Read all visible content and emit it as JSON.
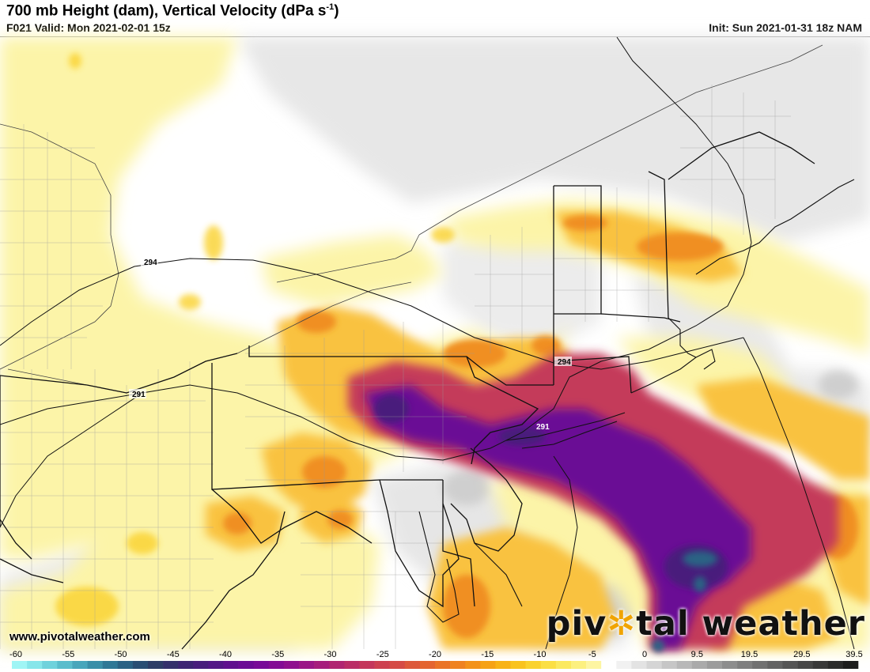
{
  "header": {
    "title_main": "700 mb Height (dam), Vertical Velocity (dPa s",
    "title_sup": "-1",
    "title_end": ")",
    "valid": "F021 Valid: Mon 2021-02-01 15z",
    "init": "Init: Sun 2021-01-31 18z NAM"
  },
  "map": {
    "contour_labels": [
      "294",
      "291",
      "294",
      "291"
    ]
  },
  "footer": {
    "website": "www.pivotalweather.com",
    "logo_pre": "piv",
    "logo_gear": "✲",
    "logo_post": "tal weather"
  },
  "colorbar": {
    "labels": [
      "-60",
      "-55",
      "-50",
      "-45",
      "-40",
      "-35",
      "-30",
      "-25",
      "-20",
      "-15",
      "-10",
      "-5",
      "0",
      "9.5",
      "19.5",
      "29.5",
      "39.5"
    ],
    "colors": [
      "#9ff5f5",
      "#86e6ea",
      "#6fd2dc",
      "#5abdcc",
      "#48a6bb",
      "#3a8fa8",
      "#2f7896",
      "#2a6284",
      "#294e73",
      "#2d3d66",
      "#34306b",
      "#3d2573",
      "#481e7c",
      "#531786",
      "#5f108e",
      "#6b0b95",
      "#770a97",
      "#830c94",
      "#8f108e",
      "#9b1686",
      "#a61d7c",
      "#b02571",
      "#ba2d66",
      "#c4365b",
      "#cd4050",
      "#d54b45",
      "#dd583a",
      "#e46530",
      "#ea7327",
      "#ef8220",
      "#f3921a",
      "#f6a216",
      "#f8b317",
      "#f9c31f",
      "#fad22e",
      "#fbdf44",
      "#fbe95f",
      "#fcf07f",
      "#fdf5a2",
      "#ffffff",
      "#f1f1f1",
      "#e3e3e3",
      "#d5d5d5",
      "#c6c6c6",
      "#b8b8b8",
      "#aaaaaa",
      "#9c9c9c",
      "#8d8d8d",
      "#7f7f7f",
      "#717171",
      "#636363",
      "#555555",
      "#474747",
      "#393939",
      "#2b2b2b",
      "#1d1d1d"
    ],
    "colors_note_count": 56
  }
}
